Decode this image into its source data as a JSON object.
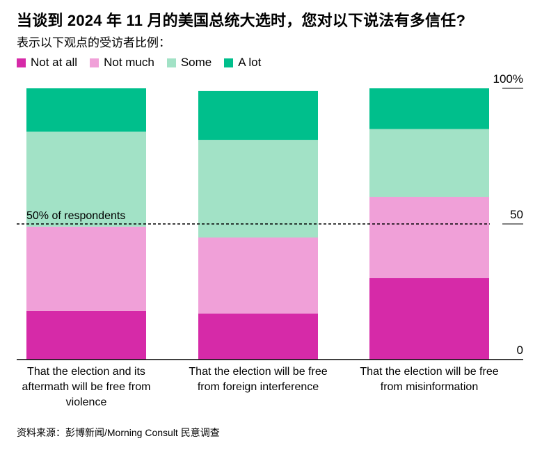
{
  "title": "当谈到 2024 年 11 月的美国总统大选时，您对以下说法有多信任?",
  "subtitle": "表示以下观点的受访者比例：",
  "source": "资料来源：彭博新闻/Morning Consult 民意调查",
  "legend": [
    {
      "label": "Not at all",
      "color": "#d62aa8"
    },
    {
      "label": "Not much",
      "color": "#f0a0d8"
    },
    {
      "label": "Some",
      "color": "#a2e2c6"
    },
    {
      "label": "A lot",
      "color": "#00bf8c"
    }
  ],
  "chart_data": {
    "type": "bar",
    "stacked": true,
    "categories": [
      [
        "That the election and its",
        "aftermath will be free from",
        "violence"
      ],
      [
        "That the election will be free",
        "from foreign interference"
      ],
      [
        "That the election will be free",
        "from misinformation"
      ]
    ],
    "series": [
      {
        "name": "Not at all",
        "color": "#d62aa8",
        "values": [
          18,
          17,
          30
        ]
      },
      {
        "name": "Not much",
        "color": "#f0a0d8",
        "values": [
          31,
          28,
          30
        ]
      },
      {
        "name": "Some",
        "color": "#a2e2c6",
        "values": [
          35,
          36,
          25
        ]
      },
      {
        "name": "A lot",
        "color": "#00bf8c",
        "values": [
          16,
          18,
          15
        ]
      }
    ],
    "ylim": [
      0,
      100
    ],
    "yticks": [
      {
        "value": 0,
        "label": "0"
      },
      {
        "value": 50,
        "label": "50"
      },
      {
        "value": 100,
        "label": "100%"
      }
    ],
    "reference_line": {
      "value": 50,
      "label": "50% of respondents"
    }
  }
}
